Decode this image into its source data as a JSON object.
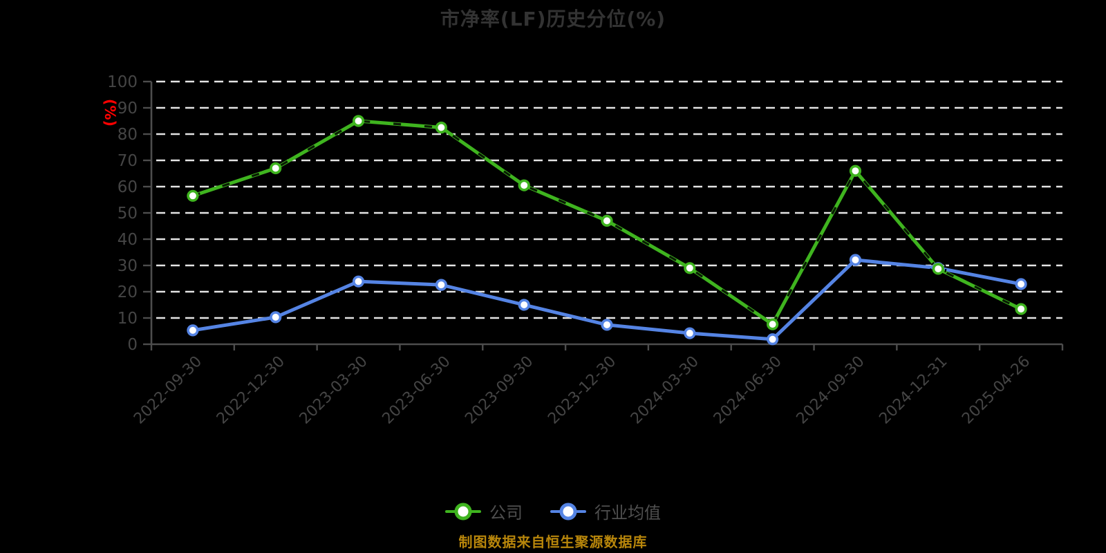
{
  "source_note": "制图数据来自恒生聚源数据库",
  "colors": {
    "company_line": "#3FB41F",
    "industry_line": "#5584E4",
    "ylabel": "#FF0000",
    "source_note": "#B8860B",
    "axis_text": "#454545",
    "axis_line": "#4D4D4D",
    "gridline": "#E4E4E4",
    "marker_fill": "#FFFFFF"
  },
  "chart_data": {
    "type": "line",
    "title": "市净率(LF)历史分位(%)",
    "xlabel": "",
    "ylabel": "(%)",
    "ylim": [
      0,
      100
    ],
    "yticks": [
      0,
      10,
      20,
      30,
      40,
      50,
      60,
      70,
      80,
      90,
      100
    ],
    "grid": "horizontal dashed white lines, black background",
    "legend_position": "bottom",
    "categories": [
      "2022-09-30",
      "2022-12-30",
      "2023-03-30",
      "2023-06-30",
      "2023-09-30",
      "2023-12-30",
      "2024-03-30",
      "2024-06-30",
      "2024-09-30",
      "2024-12-31",
      "2025-04-26"
    ],
    "series": [
      {
        "name": "公司",
        "color": "#3FB41F",
        "style": "solid with dark dashed overlay",
        "values": [
          56.5,
          67,
          85,
          82.5,
          60.5,
          47,
          29,
          7.6,
          66,
          28.7,
          13.4
        ]
      },
      {
        "name": "行业均值",
        "color": "#5584E4",
        "style": "solid",
        "values": [
          5.3,
          10.3,
          23.9,
          22.6,
          15,
          7.4,
          4.2,
          1.9,
          32.1,
          29,
          22.9
        ]
      }
    ]
  }
}
